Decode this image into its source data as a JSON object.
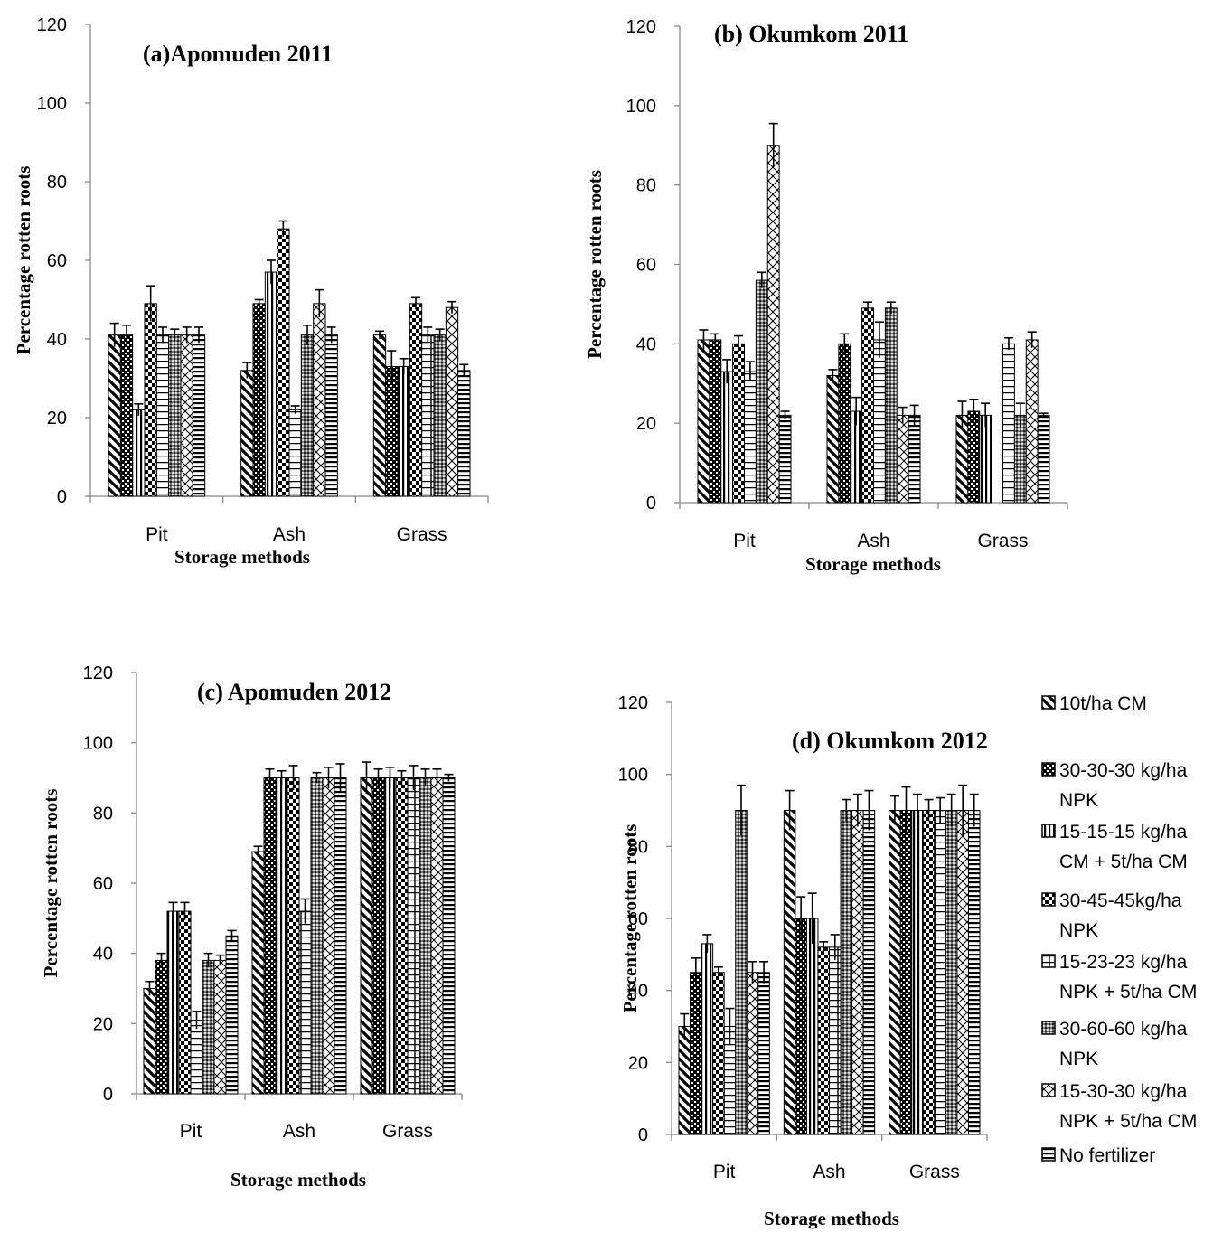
{
  "legend": [
    {
      "id": "s0",
      "lines": [
        "10t/ha CM"
      ]
    },
    {
      "id": "s1",
      "lines": [
        "30-30-30 kg/ha",
        "NPK"
      ]
    },
    {
      "id": "s2",
      "lines": [
        "15-15-15 kg/ha",
        "CM + 5t/ha CM"
      ]
    },
    {
      "id": "s3",
      "lines": [
        "30-45-45kg/ha",
        "NPK"
      ]
    },
    {
      "id": "s4",
      "lines": [
        "15-23-23 kg/ha",
        "NPK + 5t/ha CM"
      ]
    },
    {
      "id": "s5",
      "lines": [
        "30-60-60 kg/ha",
        "NPK"
      ]
    },
    {
      "id": "s6",
      "lines": [
        "15-30-30 kg/ha",
        "NPK + 5t/ha CM"
      ]
    },
    {
      "id": "s7",
      "lines": [
        "No fertilizer"
      ]
    }
  ],
  "chart_data": [
    {
      "type": "bar",
      "title": "(a)Apomuden 2011",
      "xlabel": "Storage methods",
      "ylabel": "Percentage rotten roots",
      "ylim": [
        0,
        120
      ],
      "yticks": [
        0,
        20,
        40,
        60,
        80,
        100,
        120
      ],
      "categories": [
        "Pit",
        "Ash",
        "Grass"
      ],
      "series": [
        {
          "name": "10t/ha CM",
          "values": [
            41,
            32,
            41
          ],
          "errors": [
            3,
            2,
            1
          ]
        },
        {
          "name": "30-30-30 kg/ha NPK",
          "values": [
            41,
            49,
            33
          ],
          "errors": [
            2.5,
            1,
            4
          ]
        },
        {
          "name": "15-15-15 kg/ha CM + 5t/ha CM",
          "values": [
            22,
            57,
            33
          ],
          "errors": [
            1.5,
            3,
            2
          ]
        },
        {
          "name": "30-45-45kg/ha NPK",
          "values": [
            49,
            68,
            49
          ],
          "errors": [
            4.5,
            2,
            1.5
          ]
        },
        {
          "name": "15-23-23 kg/ha NPK + 5t/ha CM",
          "values": [
            41,
            22,
            41
          ],
          "errors": [
            2,
            1,
            2
          ]
        },
        {
          "name": "30-60-60 kg/ha NPK",
          "values": [
            41,
            41,
            41
          ],
          "errors": [
            1.5,
            2.5,
            1.5
          ]
        },
        {
          "name": "15-30-30 kg/ha NPK + 5t/ha CM",
          "values": [
            41,
            49,
            48
          ],
          "errors": [
            2,
            3.5,
            1.5
          ]
        },
        {
          "name": "No fertilizer",
          "values": [
            41,
            41,
            32
          ],
          "errors": [
            2,
            2,
            1.5
          ]
        }
      ]
    },
    {
      "type": "bar",
      "title": "(b) Okumkom 2011",
      "xlabel": "Storage methods",
      "ylabel": "Percentage rotten roots",
      "ylim": [
        0,
        120
      ],
      "yticks": [
        0,
        20,
        40,
        60,
        80,
        100,
        120
      ],
      "categories": [
        "Pit",
        "Ash",
        "Grass"
      ],
      "series": [
        {
          "name": "10t/ha CM",
          "values": [
            41,
            32,
            22
          ],
          "errors": [
            2.5,
            1.5,
            3.5
          ]
        },
        {
          "name": "30-30-30 kg/ha NPK",
          "values": [
            41,
            40,
            23
          ],
          "errors": [
            1.5,
            2.5,
            3
          ]
        },
        {
          "name": "15-15-15 kg/ha CM + 5t/ha CM",
          "values": [
            33,
            23,
            22
          ],
          "errors": [
            3,
            3.5,
            3
          ]
        },
        {
          "name": "30-45-45kg/ha NPK",
          "values": [
            40,
            49,
            0
          ],
          "errors": [
            2,
            1.5,
            0
          ]
        },
        {
          "name": "15-23-23 kg/ha NPK + 5t/ha CM",
          "values": [
            33,
            41,
            40
          ],
          "errors": [
            2.5,
            4.5,
            1.5
          ]
        },
        {
          "name": "30-60-60 kg/ha NPK",
          "values": [
            56,
            49,
            22
          ],
          "errors": [
            2,
            1.5,
            3
          ]
        },
        {
          "name": "15-30-30 kg/ha NPK + 5t/ha CM",
          "values": [
            90,
            22,
            41
          ],
          "errors": [
            5.5,
            2,
            2
          ]
        },
        {
          "name": "No fertilizer",
          "values": [
            22,
            22,
            22
          ],
          "errors": [
            1,
            2.5,
            0.5
          ]
        }
      ]
    },
    {
      "type": "bar",
      "title": "(c) Apomuden 2012",
      "xlabel": "Storage methods",
      "ylabel": "Percentage rotten roots",
      "ylim": [
        0,
        120
      ],
      "yticks": [
        0,
        20,
        40,
        60,
        80,
        100,
        120
      ],
      "categories": [
        "Pit",
        "Ash",
        "Grass"
      ],
      "series": [
        {
          "name": "10t/ha CM",
          "values": [
            30,
            69,
            90
          ],
          "errors": [
            2,
            1.5,
            4.5
          ]
        },
        {
          "name": "30-30-30 kg/ha NPK",
          "values": [
            38,
            90,
            90
          ],
          "errors": [
            2,
            2.5,
            2.5
          ]
        },
        {
          "name": "15-15-15 kg/ha CM + 5t/ha CM",
          "values": [
            52,
            90,
            90
          ],
          "errors": [
            2.5,
            2,
            3
          ]
        },
        {
          "name": "30-45-45kg/ha NPK",
          "values": [
            52,
            90,
            90
          ],
          "errors": [
            2.5,
            3.5,
            2
          ]
        },
        {
          "name": "15-23-23 kg/ha NPK + 5t/ha CM",
          "values": [
            21,
            52,
            90
          ],
          "errors": [
            2.5,
            3.5,
            3.5
          ]
        },
        {
          "name": "30-60-60 kg/ha NPK",
          "values": [
            38,
            90,
            90
          ],
          "errors": [
            2,
            1.5,
            2.5
          ]
        },
        {
          "name": "15-30-30 kg/ha NPK + 5t/ha CM",
          "values": [
            38,
            90,
            90
          ],
          "errors": [
            1.5,
            3,
            2.5
          ]
        },
        {
          "name": "No fertilizer",
          "values": [
            45,
            90,
            90
          ],
          "errors": [
            1.5,
            4,
            1
          ]
        }
      ]
    },
    {
      "type": "bar",
      "title": "(d) Okumkom 2012",
      "xlabel": "Storage methods",
      "ylabel": "Percentage rotten roots",
      "ylim": [
        0,
        120
      ],
      "yticks": [
        0,
        20,
        40,
        60,
        80,
        100,
        120
      ],
      "categories": [
        "Pit",
        "Ash",
        "Grass"
      ],
      "series": [
        {
          "name": "10t/ha CM",
          "values": [
            30,
            90,
            90
          ],
          "errors": [
            3.5,
            5.5,
            4
          ]
        },
        {
          "name": "30-30-30 kg/ha NPK",
          "values": [
            45,
            60,
            90
          ],
          "errors": [
            4,
            6,
            6.5
          ]
        },
        {
          "name": "15-15-15 kg/ha CM + 5t/ha CM",
          "values": [
            53,
            60,
            90
          ],
          "errors": [
            2.5,
            7,
            4.5
          ]
        },
        {
          "name": "30-45-45kg/ha NPK",
          "values": [
            45,
            52,
            90
          ],
          "errors": [
            1.5,
            1.5,
            3
          ]
        },
        {
          "name": "15-23-23 kg/ha NPK + 5t/ha CM",
          "values": [
            30,
            52,
            90
          ],
          "errors": [
            5,
            3.5,
            3.5
          ]
        },
        {
          "name": "30-60-60 kg/ha NPK",
          "values": [
            90,
            90,
            90
          ],
          "errors": [
            7,
            3,
            4.5
          ]
        },
        {
          "name": "15-30-30 kg/ha NPK + 5t/ha CM",
          "values": [
            45,
            90,
            90
          ],
          "errors": [
            3,
            4.5,
            7
          ]
        },
        {
          "name": "No fertilizer",
          "values": [
            45,
            90,
            90
          ],
          "errors": [
            3,
            5.5,
            4.5
          ]
        }
      ]
    }
  ]
}
